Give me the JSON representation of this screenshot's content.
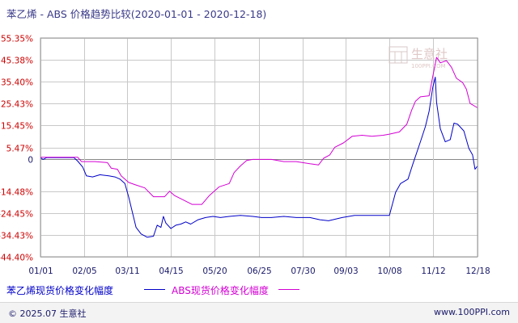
{
  "title": "苯乙烯 - ABS 价格趋势比较(2020-01-01 - 2020-12-18)",
  "watermark": "生意社",
  "watermark_url": "100PPI.COM",
  "footer": {
    "copyright": "© 2025.07 生意社",
    "site": "www.100PPI.com"
  },
  "colors": {
    "series_a": "#0000c8",
    "series_b": "#d400d4",
    "ytick": "#cc0000",
    "xtick": "#1a1a6a",
    "grid": "#c8c8c8",
    "frame": "#999999",
    "zero": "#888888"
  },
  "chart_data": {
    "type": "line",
    "ylim": [
      -44.4,
      55.35
    ],
    "yticks": [
      55.35,
      45.38,
      35.4,
      25.43,
      15.45,
      5.47,
      0,
      -14.48,
      -24.45,
      -34.43,
      -44.4
    ],
    "ytick_labels": [
      "55.35%",
      "45.38%",
      "35.40%",
      "25.43%",
      "15.45%",
      "5.47%",
      "0",
      "-14.48%",
      "-24.45%",
      "-34.43%",
      "-44.40%"
    ],
    "xlim": [
      "2020-01-01",
      "2020-12-18"
    ],
    "xticks": [
      "01/01",
      "02/05",
      "03/11",
      "04/15",
      "05/20",
      "06/25",
      "07/30",
      "09/03",
      "10/08",
      "11/12",
      "12/18"
    ],
    "series": [
      {
        "name": "苯乙烯现货价格变化幅度",
        "color": "#0000c8",
        "points": [
          [
            "01/01",
            0.8
          ],
          [
            "01/03",
            0.0
          ],
          [
            "01/06",
            0.8
          ],
          [
            "01/20",
            0.8
          ],
          [
            "01/28",
            0.8
          ],
          [
            "01/31",
            -0.8
          ],
          [
            "02/04",
            -3.5
          ],
          [
            "02/07",
            -7.5
          ],
          [
            "02/12",
            -8.0
          ],
          [
            "02/18",
            -7.0
          ],
          [
            "02/25",
            -7.5
          ],
          [
            "03/01",
            -8.0
          ],
          [
            "03/05",
            -9.0
          ],
          [
            "03/09",
            -11.0
          ],
          [
            "03/12",
            -17.0
          ],
          [
            "03/15",
            -24.0
          ],
          [
            "03/18",
            -31.0
          ],
          [
            "03/22",
            -34.0
          ],
          [
            "03/27",
            -35.5
          ],
          [
            "04/01",
            -35.0
          ],
          [
            "04/04",
            -30.0
          ],
          [
            "04/07",
            -31.0
          ],
          [
            "04/09",
            -26.0
          ],
          [
            "04/11",
            -29.0
          ],
          [
            "04/15",
            -31.5
          ],
          [
            "04/19",
            -30.0
          ],
          [
            "04/23",
            -29.5
          ],
          [
            "04/27",
            -28.5
          ],
          [
            "05/01",
            -29.5
          ],
          [
            "05/07",
            -27.5
          ],
          [
            "05/13",
            -26.5
          ],
          [
            "05/19",
            -26.0
          ],
          [
            "05/25",
            -26.5
          ],
          [
            "06/01",
            -26.0
          ],
          [
            "06/10",
            -25.5
          ],
          [
            "06/20",
            -26.0
          ],
          [
            "06/27",
            -26.5
          ],
          [
            "07/05",
            -26.5
          ],
          [
            "07/15",
            -26.0
          ],
          [
            "07/25",
            -26.5
          ],
          [
            "08/05",
            -26.5
          ],
          [
            "08/13",
            -27.5
          ],
          [
            "08/20",
            -28.0
          ],
          [
            "08/31",
            -26.5
          ],
          [
            "09/10",
            -25.5
          ],
          [
            "09/20",
            -25.5
          ],
          [
            "10/01",
            -25.5
          ],
          [
            "10/08",
            -25.5
          ],
          [
            "10/13",
            -15.0
          ],
          [
            "10/17",
            -11.0
          ],
          [
            "10/23",
            -9.0
          ],
          [
            "10/27",
            -2.0
          ],
          [
            "11/02",
            8.0
          ],
          [
            "11/06",
            15.0
          ],
          [
            "11/09",
            22.0
          ],
          [
            "11/12",
            33.0
          ],
          [
            "11/14",
            37.5
          ],
          [
            "11/15",
            26.0
          ],
          [
            "11/18",
            14.0
          ],
          [
            "11/22",
            8.0
          ],
          [
            "11/26",
            9.0
          ],
          [
            "11/29",
            16.5
          ],
          [
            "12/02",
            16.0
          ],
          [
            "12/07",
            13.0
          ],
          [
            "12/11",
            5.0
          ],
          [
            "12/14",
            2.0
          ],
          [
            "12/16",
            -4.5
          ],
          [
            "12/18",
            -3.0
          ]
        ]
      },
      {
        "name": "ABS现货价格变化幅度",
        "color": "#d400d4",
        "points": [
          [
            "01/01",
            1.0
          ],
          [
            "01/20",
            1.0
          ],
          [
            "01/31",
            1.0
          ],
          [
            "02/03",
            -1.0
          ],
          [
            "02/14",
            -1.0
          ],
          [
            "02/24",
            -1.5
          ],
          [
            "02/27",
            -4.0
          ],
          [
            "03/03",
            -4.5
          ],
          [
            "03/06",
            -7.5
          ],
          [
            "03/12",
            -10.5
          ],
          [
            "03/17",
            -11.5
          ],
          [
            "03/25",
            -13.0
          ],
          [
            "04/01",
            -17.0
          ],
          [
            "04/10",
            -17.0
          ],
          [
            "04/14",
            -14.5
          ],
          [
            "04/18",
            -16.5
          ],
          [
            "04/25",
            -18.5
          ],
          [
            "05/02",
            -20.5
          ],
          [
            "05/10",
            -20.5
          ],
          [
            "05/16",
            -16.5
          ],
          [
            "05/24",
            -12.5
          ],
          [
            "06/01",
            -11.0
          ],
          [
            "06/05",
            -6.0
          ],
          [
            "06/10",
            -3.0
          ],
          [
            "06/15",
            -0.5
          ],
          [
            "06/20",
            0.0
          ],
          [
            "07/05",
            0.0
          ],
          [
            "07/15",
            -1.0
          ],
          [
            "07/25",
            -1.0
          ],
          [
            "08/05",
            -2.0
          ],
          [
            "08/12",
            -2.5
          ],
          [
            "08/16",
            0.5
          ],
          [
            "08/21",
            2.0
          ],
          [
            "08/25",
            5.5
          ],
          [
            "09/01",
            7.5
          ],
          [
            "09/08",
            10.5
          ],
          [
            "09/16",
            11.0
          ],
          [
            "09/24",
            10.5
          ],
          [
            "10/03",
            11.0
          ],
          [
            "10/08",
            11.5
          ],
          [
            "10/16",
            12.5
          ],
          [
            "10/22",
            16.0
          ],
          [
            "10/26",
            22.5
          ],
          [
            "10/29",
            26.5
          ],
          [
            "11/02",
            28.5
          ],
          [
            "11/09",
            29.0
          ],
          [
            "11/12",
            38.0
          ],
          [
            "11/15",
            46.5
          ],
          [
            "11/18",
            44.0
          ],
          [
            "11/23",
            45.0
          ],
          [
            "11/27",
            42.0
          ],
          [
            "12/01",
            37.0
          ],
          [
            "12/06",
            35.0
          ],
          [
            "12/09",
            32.0
          ],
          [
            "12/12",
            25.5
          ],
          [
            "12/18",
            23.5
          ]
        ]
      }
    ]
  }
}
